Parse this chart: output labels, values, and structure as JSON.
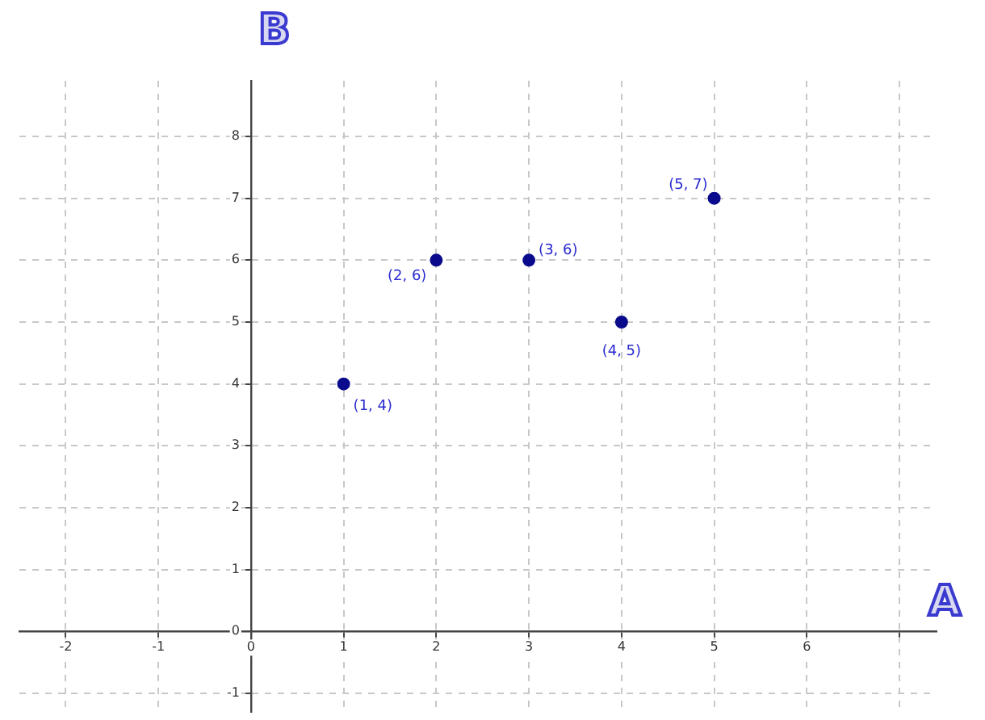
{
  "chart_data": {
    "type": "scatter",
    "xlabel": "A",
    "ylabel": "B",
    "x": [
      1,
      2,
      3,
      4,
      5
    ],
    "series": [
      {
        "color": "#0a0a8c",
        "values": [
          4,
          6,
          6,
          5,
          7
        ]
      }
    ],
    "xlim": [
      -2.5,
      7.4
    ],
    "ylim": [
      -1.3,
      8.9
    ],
    "xticks": [
      -2,
      -1,
      0,
      1,
      2,
      3,
      4,
      5,
      6,
      {
        "value": 7,
        "label": null
      }
    ],
    "yticks": [
      -1,
      0,
      1,
      2,
      3,
      4,
      5,
      6,
      7,
      8
    ],
    "grid": true,
    "marker": "circle",
    "legend": false,
    "annotations": [
      {
        "text": "(1, 4)",
        "x": 1,
        "y": 4
      },
      {
        "text": "(2, 6)",
        "x": 2,
        "y": 6
      },
      {
        "text": "(3, 6)",
        "x": 3,
        "y": 6
      },
      {
        "text": "(4, 5)",
        "x": 4,
        "y": 5
      },
      {
        "text": "(5, 7)",
        "x": 5,
        "y": 7
      }
    ]
  }
}
